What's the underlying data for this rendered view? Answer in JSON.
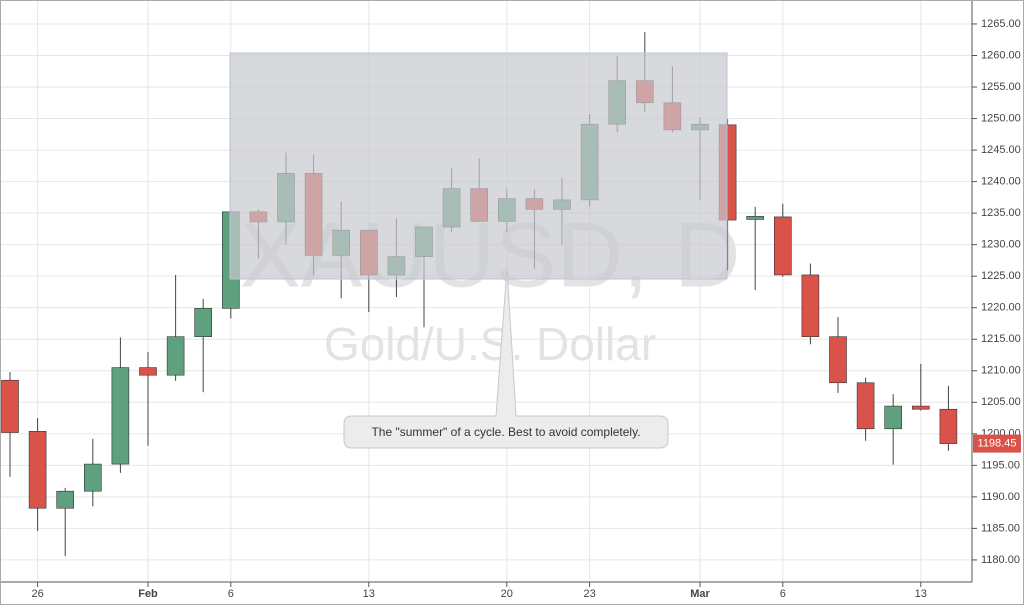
{
  "chart_data": {
    "type": "candlestick",
    "watermark": "XAUUSD, D",
    "subtitle": "Gold/U.S. Dollar",
    "annotation": "The \"summer\" of a cycle.  Best to avoid completely.",
    "categories": [
      null,
      "26",
      null,
      null,
      null,
      "Feb",
      null,
      null,
      "6",
      null,
      null,
      null,
      null,
      "13",
      null,
      null,
      null,
      null,
      "20",
      null,
      null,
      "23",
      null,
      null,
      null,
      "Mar",
      null,
      null,
      "6",
      null,
      null,
      null,
      null,
      "13",
      null
    ],
    "open": [
      1208.5,
      1200.4,
      1188.2,
      1190.9,
      1195.2,
      1210.5,
      1209.3,
      1215.4,
      1219.9,
      1235.2,
      1233.6,
      1241.3,
      1228.3,
      1232.3,
      1225.2,
      1228.1,
      1232.8,
      1238.9,
      1233.7,
      1237.3,
      1235.6,
      1237.1,
      1249.1,
      1256.0,
      1252.5,
      1248.2,
      1249.0,
      1234.0,
      1234.4,
      1225.2,
      1215.4,
      1208.1,
      1200.8,
      1204.4,
      1203.9
    ],
    "high": [
      1209.8,
      1202.5,
      1191.4,
      1199.2,
      1215.3,
      1213.0,
      1225.2,
      1221.4,
      1235.2,
      1235.6,
      1244.6,
      1244.3,
      1236.8,
      1232.4,
      1234.2,
      1232.9,
      1242.2,
      1243.7,
      1238.9,
      1238.7,
      1240.6,
      1250.7,
      1259.9,
      1263.7,
      1258.3,
      1250.2,
      1249.9,
      1236.0,
      1236.5,
      1227.0,
      1218.5,
      1208.9,
      1206.3,
      1211.1,
      1207.6
    ],
    "low": [
      1193.2,
      1184.6,
      1180.6,
      1188.5,
      1193.8,
      1198.1,
      1208.4,
      1206.6,
      1218.3,
      1227.8,
      1230.0,
      1225.1,
      1221.5,
      1219.3,
      1221.7,
      1216.9,
      1232.0,
      1233.6,
      1232.0,
      1226.2,
      1229.9,
      1236.0,
      1247.8,
      1251.0,
      1247.8,
      1237.1,
      1225.9,
      1222.8,
      1224.9,
      1214.2,
      1206.5,
      1198.9,
      1195.1,
      1203.7,
      1197.3
    ],
    "close": [
      1200.2,
      1188.2,
      1190.9,
      1195.2,
      1210.5,
      1209.3,
      1215.4,
      1219.9,
      1235.2,
      1233.6,
      1241.3,
      1228.3,
      1232.3,
      1225.2,
      1228.1,
      1232.8,
      1238.9,
      1233.7,
      1237.3,
      1235.6,
      1237.1,
      1249.1,
      1256.0,
      1252.5,
      1248.2,
      1249.1,
      1233.9,
      1234.5,
      1225.2,
      1215.4,
      1208.1,
      1200.8,
      1204.4,
      1203.9,
      1198.45
    ],
    "up_color": "#5fa17f",
    "down_color": "#d9534a",
    "ylim": [
      1176.5,
      1268.8
    ],
    "yticks": [
      {
        "value": 1180,
        "label": "1180.00"
      },
      {
        "value": 1185,
        "label": "1185.00"
      },
      {
        "value": 1190,
        "label": "1190.00"
      },
      {
        "value": 1195,
        "label": "1195.00"
      },
      {
        "value": 1200,
        "label": "1200.00"
      },
      {
        "value": 1205,
        "label": "1205.00"
      },
      {
        "value": 1210,
        "label": "1210.00"
      },
      {
        "value": 1215,
        "label": "1215.00"
      },
      {
        "value": 1220,
        "label": "1220.00"
      },
      {
        "value": 1225,
        "label": "1225.00"
      },
      {
        "value": 1230,
        "label": "1230.00"
      },
      {
        "value": 1235,
        "label": "1235.00"
      },
      {
        "value": 1240,
        "label": "1240.00"
      },
      {
        "value": 1245,
        "label": "1245.00"
      },
      {
        "value": 1250,
        "label": "1250.00"
      },
      {
        "value": 1255,
        "label": "1255.00"
      },
      {
        "value": 1260,
        "label": "1260.00"
      },
      {
        "value": 1265,
        "label": "1265.00"
      }
    ],
    "grid": true
  }
}
